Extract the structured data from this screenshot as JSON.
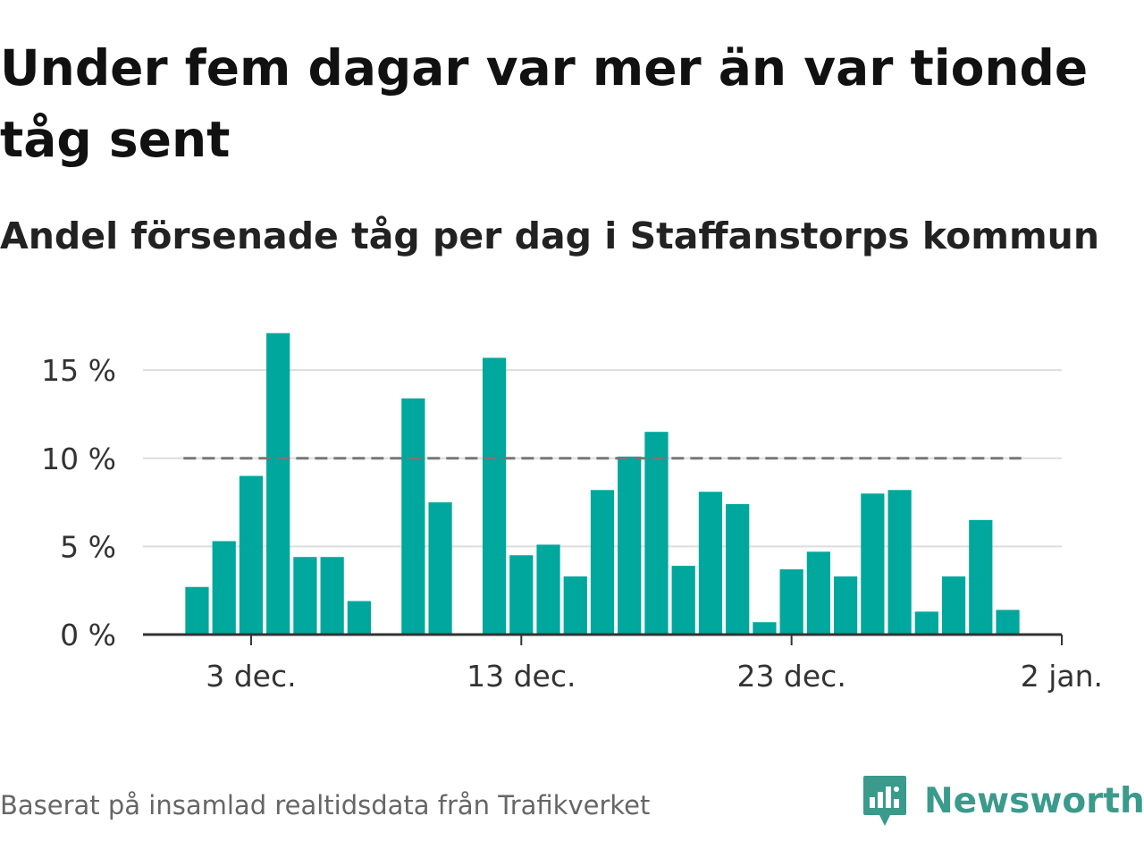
{
  "title": "Under fem dagar var mer än var tionde tåg sent",
  "subtitle": "Andel försenade tåg per dag i Staffanstorps kommun",
  "footnote": "Baserat på insamlad realtidsdata från Trafikverket",
  "brand": {
    "name": "Newsworthy",
    "color": "#3a9a8c",
    "icon": "newsworthy-logo-icon"
  },
  "colors": {
    "bar": "#00a79d",
    "grid": "#dddddd",
    "axis": "#333333",
    "reference": "#777777"
  },
  "chart_data": {
    "type": "bar",
    "x_tick_labels": [
      "3 dec.",
      "13 dec.",
      "23 dec.",
      "2 jan."
    ],
    "y_tick_labels": [
      "0 %",
      "5 %",
      "10 %",
      "15 %"
    ],
    "y_ticks": [
      0,
      5,
      10,
      15
    ],
    "ylim": [
      0,
      18
    ],
    "xlim": [
      "2023-11-29",
      "2024-01-02"
    ],
    "reference_line": {
      "value": 10,
      "style": "dashed",
      "from": "2023-12-01",
      "to": "2023-12-31"
    },
    "grid": true,
    "series": [
      {
        "x": [
          "2023-12-01",
          "2023-12-02",
          "2023-12-03",
          "2023-12-04",
          "2023-12-05",
          "2023-12-06",
          "2023-12-07",
          "2023-12-08",
          "2023-12-09",
          "2023-12-10",
          "2023-12-11",
          "2023-12-12",
          "2023-12-13",
          "2023-12-14",
          "2023-12-15",
          "2023-12-16",
          "2023-12-17",
          "2023-12-18",
          "2023-12-19",
          "2023-12-20",
          "2023-12-21",
          "2023-12-22",
          "2023-12-23",
          "2023-12-24",
          "2023-12-25",
          "2023-12-26",
          "2023-12-27",
          "2023-12-28",
          "2023-12-29",
          "2023-12-30",
          "2023-12-31"
        ],
        "values": [
          2.7,
          5.3,
          9.0,
          17.1,
          4.4,
          4.4,
          1.9,
          0,
          13.4,
          7.5,
          0,
          15.7,
          4.5,
          5.1,
          3.3,
          8.2,
          10.1,
          11.5,
          3.9,
          8.1,
          7.4,
          0.7,
          3.7,
          4.7,
          3.3,
          8.0,
          8.2,
          1.3,
          3.3,
          6.5,
          1.4
        ]
      }
    ]
  }
}
